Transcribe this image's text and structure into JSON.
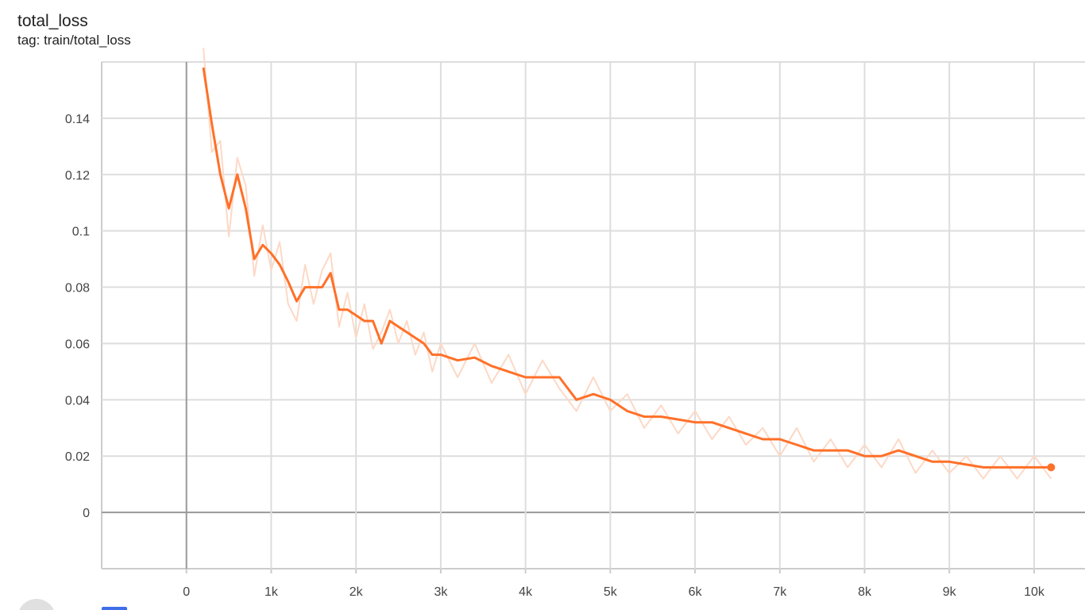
{
  "chart_data": {
    "type": "line",
    "title": "total_loss",
    "subtitle": "tag: train/total_loss",
    "x": [
      200,
      300,
      400,
      500,
      600,
      700,
      800,
      900,
      1000,
      1100,
      1200,
      1300,
      1400,
      1500,
      1600,
      1700,
      1800,
      1900,
      2000,
      2100,
      2200,
      2300,
      2400,
      2500,
      2600,
      2700,
      2800,
      2900,
      3000,
      3200,
      3400,
      3600,
      3800,
      4000,
      4200,
      4400,
      4600,
      4800,
      5000,
      5200,
      5400,
      5600,
      5800,
      6000,
      6200,
      6400,
      6600,
      6800,
      7000,
      7200,
      7400,
      7600,
      7800,
      8000,
      8200,
      8400,
      8600,
      8800,
      9000,
      9200,
      9400,
      9600,
      9800,
      10000,
      10200
    ],
    "series": [
      {
        "color": "#fcd9c6",
        "values": [
          0.165,
          0.128,
          0.132,
          0.098,
          0.126,
          0.116,
          0.084,
          0.102,
          0.086,
          0.096,
          0.074,
          0.068,
          0.088,
          0.074,
          0.086,
          0.092,
          0.066,
          0.078,
          0.062,
          0.074,
          0.058,
          0.064,
          0.072,
          0.06,
          0.068,
          0.056,
          0.064,
          0.05,
          0.06,
          0.048,
          0.06,
          0.046,
          0.056,
          0.042,
          0.054,
          0.044,
          0.036,
          0.048,
          0.036,
          0.042,
          0.03,
          0.038,
          0.028,
          0.036,
          0.026,
          0.034,
          0.024,
          0.03,
          0.02,
          0.03,
          0.018,
          0.026,
          0.016,
          0.024,
          0.016,
          0.026,
          0.014,
          0.022,
          0.014,
          0.02,
          0.012,
          0.02,
          0.012,
          0.02,
          0.012
        ]
      },
      {
        "color": "#ff7028",
        "values": [
          0.158,
          0.138,
          0.12,
          0.108,
          0.12,
          0.108,
          0.09,
          0.095,
          0.092,
          0.088,
          0.082,
          0.075,
          0.08,
          0.08,
          0.08,
          0.085,
          0.072,
          0.072,
          0.07,
          0.068,
          0.068,
          0.06,
          0.068,
          0.066,
          0.064,
          0.062,
          0.06,
          0.056,
          0.056,
          0.054,
          0.055,
          0.052,
          0.05,
          0.048,
          0.048,
          0.048,
          0.04,
          0.042,
          0.04,
          0.036,
          0.034,
          0.034,
          0.033,
          0.032,
          0.032,
          0.03,
          0.028,
          0.026,
          0.026,
          0.024,
          0.022,
          0.022,
          0.022,
          0.02,
          0.02,
          0.022,
          0.02,
          0.018,
          0.018,
          0.017,
          0.016,
          0.016,
          0.016,
          0.016,
          0.016
        ]
      }
    ],
    "xlim": [
      -1000,
      10600
    ],
    "ylim": [
      -0.02,
      0.16
    ],
    "xticks": [
      0,
      {
        "value": 1000,
        "label": "1k"
      },
      {
        "value": 2000,
        "label": "2k"
      },
      {
        "value": 3000,
        "label": "3k"
      },
      {
        "value": 4000,
        "label": "4k"
      },
      {
        "value": 5000,
        "label": "5k"
      },
      {
        "value": 6000,
        "label": "6k"
      },
      {
        "value": 7000,
        "label": "7k"
      },
      {
        "value": 8000,
        "label": "8k"
      },
      {
        "value": 9000,
        "label": "9k"
      },
      {
        "value": 10000,
        "label": "10k"
      }
    ],
    "yticks": [
      0,
      0.02,
      0.04,
      0.06,
      0.08,
      0.1,
      0.12,
      0.14
    ],
    "grid": true
  }
}
